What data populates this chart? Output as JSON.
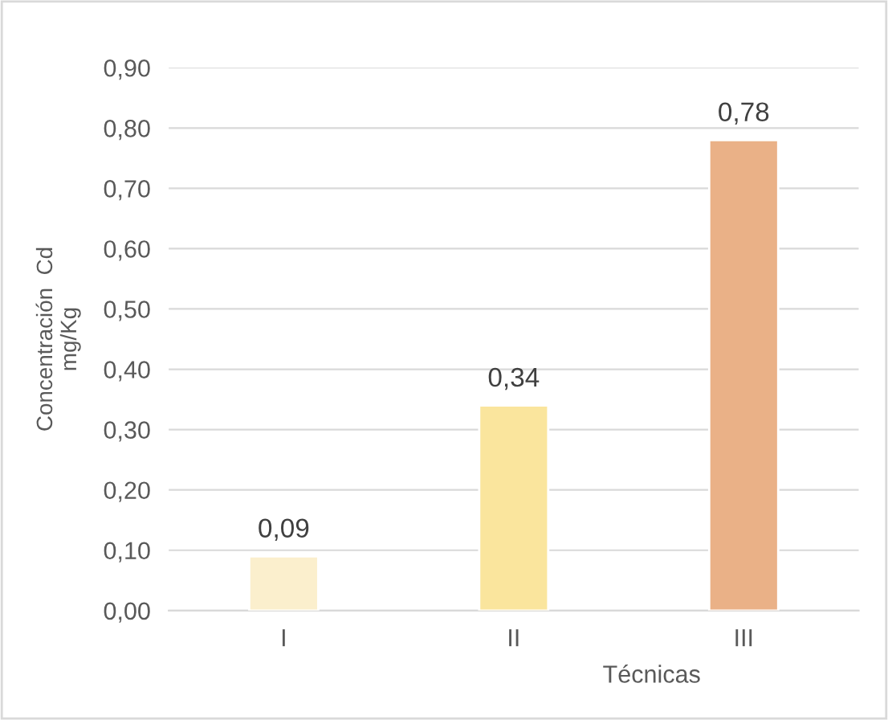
{
  "chart_data": {
    "type": "bar",
    "categories": [
      "I",
      "II",
      "III"
    ],
    "values": [
      0.09,
      0.34,
      0.78
    ],
    "colors": [
      "#fbefcd",
      "#fae59d",
      "#eab187"
    ],
    "value_labels": [
      "0,09",
      "0,34",
      "0,78"
    ],
    "xlabel": "Técnicas",
    "ylabel": "Concentración  Cd\nmg/Kg",
    "ylim": [
      0,
      0.9
    ],
    "yticks": [
      {
        "value": 0,
        "label": "0,00"
      },
      {
        "value": 0.1,
        "label": "0,10"
      },
      {
        "value": 0.2,
        "label": "0,20"
      },
      {
        "value": 0.3,
        "label": "0,30"
      },
      {
        "value": 0.4,
        "label": "0,40"
      },
      {
        "value": 0.5,
        "label": "0,50"
      },
      {
        "value": 0.6,
        "label": "0,60"
      },
      {
        "value": 0.7,
        "label": "0,70"
      },
      {
        "value": 0.8,
        "label": "0,80"
      },
      {
        "value": 0.9,
        "label": "0,90"
      }
    ],
    "grid": "y"
  }
}
